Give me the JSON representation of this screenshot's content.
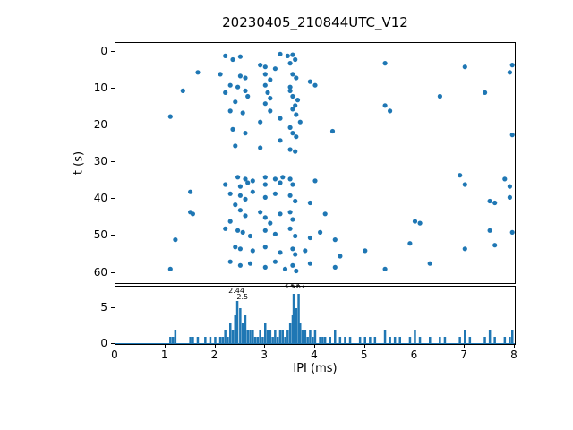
{
  "title": "20230405_210844UTC_V12",
  "accent_color": "#1f77b4",
  "chart_data": [
    {
      "type": "scatter",
      "title": "20230405_210844UTC_V12",
      "ylabel": "t (s)",
      "xlim": [
        0,
        8
      ],
      "ylim": [
        -2.5,
        62.8
      ],
      "y_inverted": true,
      "y_ticks": [
        0,
        10,
        20,
        30,
        40,
        50,
        60
      ],
      "marker_color": "#1f77b4",
      "points": [
        [
          2.2,
          1
        ],
        [
          2.5,
          1.2
        ],
        [
          2.35,
          2
        ],
        [
          3.3,
          0.5
        ],
        [
          3.45,
          1
        ],
        [
          3.55,
          0.7
        ],
        [
          3.6,
          2
        ],
        [
          3.5,
          3
        ],
        [
          2.9,
          3.5
        ],
        [
          3.0,
          4
        ],
        [
          3.2,
          4.5
        ],
        [
          5.4,
          3
        ],
        [
          7.0,
          4
        ],
        [
          7.95,
          3.5
        ],
        [
          7.9,
          5.5
        ],
        [
          1.65,
          5.5
        ],
        [
          2.1,
          6
        ],
        [
          2.5,
          6.5
        ],
        [
          2.6,
          7
        ],
        [
          3.0,
          6
        ],
        [
          3.1,
          7.5
        ],
        [
          3.55,
          6
        ],
        [
          3.62,
          7
        ],
        [
          3.9,
          8
        ],
        [
          2.3,
          9
        ],
        [
          2.45,
          9.5
        ],
        [
          3.0,
          9
        ],
        [
          3.5,
          9.5
        ],
        [
          4.0,
          9
        ],
        [
          7.4,
          11
        ],
        [
          1.35,
          10.5
        ],
        [
          2.2,
          11
        ],
        [
          2.6,
          10.5
        ],
        [
          2.65,
          12
        ],
        [
          3.05,
          11
        ],
        [
          3.1,
          12.5
        ],
        [
          3.5,
          10.5
        ],
        [
          3.55,
          12
        ],
        [
          3.65,
          13
        ],
        [
          2.4,
          13.5
        ],
        [
          3.0,
          14
        ],
        [
          3.6,
          14.5
        ],
        [
          6.5,
          12
        ],
        [
          1.1,
          17.5
        ],
        [
          2.3,
          16
        ],
        [
          2.55,
          16.5
        ],
        [
          3.1,
          16
        ],
        [
          3.55,
          15.5
        ],
        [
          3.62,
          17
        ],
        [
          3.3,
          18
        ],
        [
          2.9,
          19
        ],
        [
          3.7,
          19
        ],
        [
          5.4,
          14.5
        ],
        [
          5.5,
          16
        ],
        [
          2.35,
          21
        ],
        [
          2.6,
          22
        ],
        [
          3.5,
          20.5
        ],
        [
          3.55,
          22
        ],
        [
          3.62,
          23
        ],
        [
          3.3,
          24
        ],
        [
          2.4,
          25.5
        ],
        [
          2.9,
          26
        ],
        [
          3.5,
          26.5
        ],
        [
          3.6,
          27
        ],
        [
          4.35,
          21.5
        ],
        [
          7.95,
          22.5
        ],
        [
          2.45,
          34
        ],
        [
          2.6,
          34.5
        ],
        [
          2.75,
          35
        ],
        [
          3.0,
          34
        ],
        [
          3.2,
          34.5
        ],
        [
          3.35,
          34
        ],
        [
          3.5,
          34.5
        ],
        [
          2.2,
          36
        ],
        [
          2.5,
          36.5
        ],
        [
          2.65,
          35.5
        ],
        [
          3.0,
          36
        ],
        [
          3.3,
          35.5
        ],
        [
          3.55,
          36
        ],
        [
          4.0,
          35
        ],
        [
          7.0,
          36
        ],
        [
          7.8,
          34.5
        ],
        [
          7.9,
          36.5
        ],
        [
          6.9,
          33.5
        ],
        [
          1.5,
          38
        ],
        [
          2.3,
          38.5
        ],
        [
          2.5,
          39
        ],
        [
          2.6,
          40
        ],
        [
          2.75,
          38
        ],
        [
          3.0,
          39.5
        ],
        [
          3.2,
          38.5
        ],
        [
          3.5,
          39
        ],
        [
          3.6,
          40.5
        ],
        [
          3.9,
          41
        ],
        [
          2.4,
          41.5
        ],
        [
          7.5,
          40.5
        ],
        [
          7.6,
          41
        ],
        [
          7.9,
          39.5
        ],
        [
          1.5,
          43.5
        ],
        [
          1.55,
          44
        ],
        [
          2.5,
          43
        ],
        [
          2.6,
          44.5
        ],
        [
          2.9,
          43.5
        ],
        [
          3.0,
          45
        ],
        [
          3.3,
          44
        ],
        [
          3.5,
          43.5
        ],
        [
          3.55,
          45.5
        ],
        [
          2.3,
          46
        ],
        [
          3.1,
          46.5
        ],
        [
          4.2,
          44
        ],
        [
          6.0,
          46
        ],
        [
          6.1,
          46.5
        ],
        [
          1.2,
          51
        ],
        [
          2.2,
          48
        ],
        [
          2.45,
          48.5
        ],
        [
          2.55,
          49
        ],
        [
          2.7,
          50
        ],
        [
          3.0,
          48.5
        ],
        [
          3.2,
          49.5
        ],
        [
          3.5,
          48
        ],
        [
          3.6,
          50
        ],
        [
          3.9,
          50.5
        ],
        [
          4.1,
          49
        ],
        [
          4.4,
          51
        ],
        [
          7.5,
          48.5
        ],
        [
          5.9,
          52
        ],
        [
          7.95,
          49
        ],
        [
          2.4,
          53
        ],
        [
          2.5,
          53.5
        ],
        [
          2.75,
          54
        ],
        [
          3.0,
          53
        ],
        [
          3.3,
          54.5
        ],
        [
          3.55,
          53.5
        ],
        [
          3.6,
          55
        ],
        [
          3.8,
          54
        ],
        [
          4.5,
          55.5
        ],
        [
          5.0,
          54
        ],
        [
          7.0,
          53.5
        ],
        [
          7.6,
          52.5
        ],
        [
          1.1,
          59
        ],
        [
          2.3,
          57
        ],
        [
          2.5,
          58
        ],
        [
          2.7,
          57.5
        ],
        [
          3.0,
          58.5
        ],
        [
          3.2,
          57
        ],
        [
          3.4,
          59
        ],
        [
          3.55,
          58
        ],
        [
          3.62,
          59.5
        ],
        [
          3.9,
          57.5
        ],
        [
          4.4,
          58.5
        ],
        [
          5.4,
          59
        ],
        [
          6.3,
          57.5
        ]
      ]
    },
    {
      "type": "bar",
      "xlabel": "IPI (ms)",
      "xlim": [
        0,
        8
      ],
      "ylim": [
        0,
        8
      ],
      "x_ticks": [
        0,
        1,
        2,
        3,
        4,
        5,
        6,
        7,
        8
      ],
      "y_ticks": [
        0,
        5
      ],
      "bar_color": "#1f77b4",
      "bar_width": 0.045,
      "bars": [
        [
          1.1,
          1
        ],
        [
          1.15,
          1
        ],
        [
          1.2,
          2
        ],
        [
          1.5,
          1
        ],
        [
          1.55,
          1
        ],
        [
          1.65,
          1
        ],
        [
          1.8,
          1
        ],
        [
          1.9,
          1
        ],
        [
          2.0,
          1
        ],
        [
          2.1,
          1
        ],
        [
          2.15,
          1
        ],
        [
          2.2,
          2
        ],
        [
          2.25,
          1
        ],
        [
          2.3,
          3
        ],
        [
          2.35,
          2
        ],
        [
          2.4,
          4
        ],
        [
          2.44,
          6
        ],
        [
          2.5,
          5
        ],
        [
          2.55,
          3
        ],
        [
          2.6,
          4
        ],
        [
          2.65,
          2
        ],
        [
          2.7,
          2
        ],
        [
          2.75,
          2
        ],
        [
          2.8,
          1
        ],
        [
          2.85,
          1
        ],
        [
          2.9,
          2
        ],
        [
          2.95,
          1
        ],
        [
          3.0,
          3
        ],
        [
          3.05,
          2
        ],
        [
          3.1,
          2
        ],
        [
          3.15,
          1
        ],
        [
          3.2,
          2
        ],
        [
          3.25,
          1
        ],
        [
          3.3,
          2
        ],
        [
          3.35,
          2
        ],
        [
          3.4,
          1
        ],
        [
          3.45,
          2
        ],
        [
          3.5,
          3
        ],
        [
          3.55,
          4
        ],
        [
          3.57,
          7
        ],
        [
          3.62,
          5
        ],
        [
          3.67,
          7
        ],
        [
          3.7,
          3
        ],
        [
          3.75,
          2
        ],
        [
          3.8,
          2
        ],
        [
          3.85,
          1
        ],
        [
          3.9,
          2
        ],
        [
          3.95,
          1
        ],
        [
          4.0,
          2
        ],
        [
          4.1,
          1
        ],
        [
          4.15,
          1
        ],
        [
          4.2,
          1
        ],
        [
          4.3,
          1
        ],
        [
          4.4,
          2
        ],
        [
          4.5,
          1
        ],
        [
          4.6,
          1
        ],
        [
          4.7,
          1
        ],
        [
          4.9,
          1
        ],
        [
          5.0,
          1
        ],
        [
          5.1,
          1
        ],
        [
          5.2,
          1
        ],
        [
          5.4,
          2
        ],
        [
          5.5,
          1
        ],
        [
          5.6,
          1
        ],
        [
          5.7,
          1
        ],
        [
          5.9,
          1
        ],
        [
          6.0,
          2
        ],
        [
          6.1,
          1
        ],
        [
          6.3,
          1
        ],
        [
          6.5,
          1
        ],
        [
          6.6,
          1
        ],
        [
          6.9,
          1
        ],
        [
          7.0,
          2
        ],
        [
          7.1,
          1
        ],
        [
          7.4,
          1
        ],
        [
          7.5,
          2
        ],
        [
          7.6,
          1
        ],
        [
          7.8,
          1
        ],
        [
          7.9,
          1
        ],
        [
          7.95,
          2
        ]
      ],
      "annotations": [
        {
          "text": "2.44",
          "x": 2.44,
          "y": 6.6
        },
        {
          "text": "2.5",
          "x": 2.56,
          "y": 5.7
        },
        {
          "text": "3.57",
          "x": 3.55,
          "y": 7.2
        },
        {
          "text": "3.67",
          "x": 3.66,
          "y": 7.2
        }
      ]
    }
  ]
}
